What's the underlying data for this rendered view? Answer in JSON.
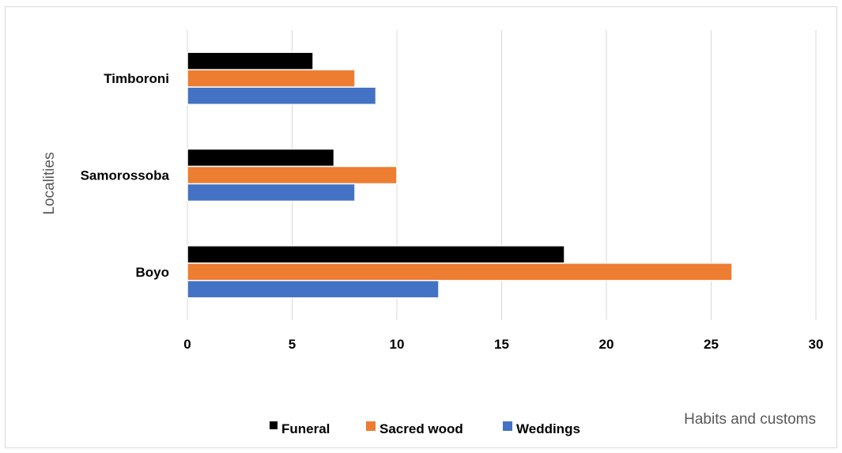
{
  "chart_data": {
    "type": "bar",
    "orientation": "horizontal",
    "categories": [
      "Boyo",
      "Samorossoba",
      "Timboroni"
    ],
    "series": [
      {
        "name": "Funeral",
        "color": "#000000",
        "values": [
          18,
          7,
          6
        ]
      },
      {
        "name": "Sacred wood",
        "color": "#ed7d31",
        "values": [
          26,
          10,
          8
        ]
      },
      {
        "name": "Weddings",
        "color": "#4472c4",
        "values": [
          12,
          8,
          9
        ]
      }
    ],
    "xlabel": "Habits and customs",
    "ylabel": "Localities",
    "xlim": [
      0,
      30
    ],
    "xticks": [
      0,
      5,
      10,
      15,
      20,
      25,
      30
    ],
    "grid": "vertical",
    "legend": "bottom"
  }
}
